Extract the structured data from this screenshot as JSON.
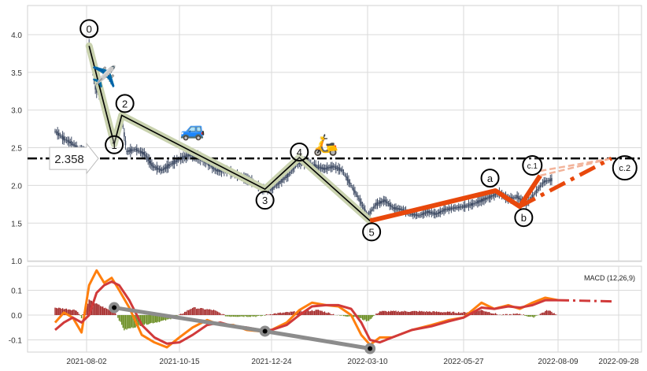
{
  "chart_data": [
    {
      "type": "candlestick",
      "ylim": [
        1.0,
        4.4
      ],
      "yticks": [
        "1.0",
        "1.5",
        "2.0",
        "2.5",
        "3.0",
        "3.5",
        "4.0"
      ],
      "grid": true,
      "close": [
        [
          "2021-07-08",
          2.72
        ],
        [
          "2021-07-15",
          2.62
        ],
        [
          "2021-07-22",
          2.55
        ],
        [
          "2021-07-29",
          2.45
        ],
        [
          "2021-08-03",
          2.4
        ],
        [
          "2021-08-04",
          3.85
        ],
        [
          "2021-08-09",
          3.3
        ],
        [
          "2021-08-16",
          3.1
        ],
        [
          "2021-08-20",
          2.8
        ],
        [
          "2021-08-24",
          2.6
        ],
        [
          "2021-08-30",
          2.9
        ],
        [
          "2021-09-03",
          2.45
        ],
        [
          "2021-09-10",
          2.48
        ],
        [
          "2021-09-17",
          2.42
        ],
        [
          "2021-09-24",
          2.25
        ],
        [
          "2021-10-01",
          2.2
        ],
        [
          "2021-10-08",
          2.28
        ],
        [
          "2021-10-15",
          2.35
        ],
        [
          "2021-10-22",
          2.4
        ],
        [
          "2021-10-29",
          2.38
        ],
        [
          "2021-11-05",
          2.3
        ],
        [
          "2021-11-12",
          2.2
        ],
        [
          "2021-11-19",
          2.2
        ],
        [
          "2021-11-26",
          2.15
        ],
        [
          "2021-12-03",
          2.1
        ],
        [
          "2021-12-10",
          2.05
        ],
        [
          "2021-12-17",
          1.95
        ],
        [
          "2021-12-24",
          1.95
        ],
        [
          "2021-12-31",
          2.05
        ],
        [
          "2022-01-07",
          2.15
        ],
        [
          "2022-01-14",
          2.3
        ],
        [
          "2022-01-21",
          2.3
        ],
        [
          "2022-01-28",
          2.25
        ],
        [
          "2022-02-04",
          2.22
        ],
        [
          "2022-02-11",
          2.25
        ],
        [
          "2022-02-18",
          2.2
        ],
        [
          "2022-02-25",
          2.0
        ],
        [
          "2022-03-04",
          1.8
        ],
        [
          "2022-03-10",
          1.6
        ],
        [
          "2022-03-17",
          1.75
        ],
        [
          "2022-03-24",
          1.8
        ],
        [
          "2022-03-31",
          1.7
        ],
        [
          "2022-04-07",
          1.68
        ],
        [
          "2022-04-14",
          1.62
        ],
        [
          "2022-04-21",
          1.6
        ],
        [
          "2022-04-28",
          1.65
        ],
        [
          "2022-05-05",
          1.62
        ],
        [
          "2022-05-12",
          1.68
        ],
        [
          "2022-05-19",
          1.7
        ],
        [
          "2022-05-27",
          1.72
        ],
        [
          "2022-06-03",
          1.75
        ],
        [
          "2022-06-10",
          1.8
        ],
        [
          "2022-06-17",
          1.85
        ],
        [
          "2022-06-24",
          1.9
        ],
        [
          "2022-07-01",
          1.82
        ],
        [
          "2022-07-08",
          1.85
        ],
        [
          "2022-07-15",
          1.75
        ],
        [
          "2022-07-22",
          1.9
        ],
        [
          "2022-07-29",
          2.05
        ],
        [
          "2022-08-05",
          2.08
        ]
      ],
      "candle_color": "#3d4a63",
      "level_line": {
        "value": 2.358,
        "label": "2.358",
        "color": "#000000"
      },
      "wave_impulse": {
        "points": [
          {
            "label": "0",
            "date": "2021-08-04",
            "value": 3.85
          },
          {
            "label": "1",
            "date": "2021-08-24",
            "value": 2.55
          },
          {
            "label": "2",
            "date": "2021-08-30",
            "value": 2.93
          },
          {
            "label": "3",
            "date": "2021-12-19",
            "value": 1.95
          },
          {
            "label": "4",
            "date": "2022-01-15",
            "value": 2.37
          },
          {
            "label": "5",
            "date": "2022-03-12",
            "value": 1.53
          }
        ],
        "color": "#000000",
        "highlight_color": "#c9d2ae"
      },
      "wave_correction": {
        "points": [
          {
            "label": "5",
            "date": "2022-03-12",
            "value": 1.53
          },
          {
            "label": "a",
            "date": "2022-06-21",
            "value": 1.93
          },
          {
            "label": "b",
            "date": "2022-07-10",
            "value": 1.72
          },
          {
            "label": "c.1",
            "date": "2022-07-26",
            "value": 2.13
          }
        ],
        "projection": {
          "label": "c.2",
          "date": "2022-09-22",
          "value": 2.358
        },
        "color": "#e8480c",
        "dash_color": "#f2b39a"
      },
      "emoji_icons": [
        {
          "name": "airplane-icon",
          "glyph": "✈️",
          "date": "2021-08-16",
          "value": 3.35
        },
        {
          "name": "car-icon",
          "glyph": "🚙",
          "date": "2021-10-25",
          "value": 2.65
        },
        {
          "name": "scooter-icon",
          "glyph": "🛵",
          "date": "2022-02-05",
          "value": 2.45
        }
      ]
    },
    {
      "type": "line",
      "title": "MACD (12,26,9)",
      "ylim": [
        -0.155,
        0.19
      ],
      "yticks": [
        "-0.1",
        "0.0",
        "0.1"
      ],
      "xticks": [
        "2021-08-02",
        "2021-10-15",
        "2021-12-24",
        "2022-03-10",
        "2022-05-27",
        "2022-08-09",
        "2022-09-28"
      ],
      "series": [
        {
          "color": "#ff7f0e",
          "values": [
            [
              "2021-07-08",
              -0.03
            ],
            [
              "2021-07-15",
              0.01
            ],
            [
              "2021-07-22",
              -0.01
            ],
            [
              "2021-07-29",
              -0.07
            ],
            [
              "2021-08-04",
              0.12
            ],
            [
              "2021-08-10",
              0.18
            ],
            [
              "2021-08-16",
              0.13
            ],
            [
              "2021-08-22",
              0.15
            ],
            [
              "2021-08-28",
              0.1
            ],
            [
              "2021-09-05",
              0.03
            ],
            [
              "2021-09-15",
              -0.08
            ],
            [
              "2021-09-25",
              -0.11
            ],
            [
              "2021-10-05",
              -0.13
            ],
            [
              "2021-10-15",
              -0.09
            ],
            [
              "2021-10-25",
              -0.05
            ],
            [
              "2021-11-05",
              -0.02
            ],
            [
              "2021-11-15",
              -0.04
            ],
            [
              "2021-11-25",
              -0.04
            ],
            [
              "2021-12-05",
              -0.06
            ],
            [
              "2021-12-15",
              -0.065
            ],
            [
              "2021-12-24",
              -0.06
            ],
            [
              "2022-01-05",
              -0.03
            ],
            [
              "2022-01-15",
              0.02
            ],
            [
              "2022-01-25",
              0.05
            ],
            [
              "2022-02-05",
              0.04
            ],
            [
              "2022-02-15",
              0.035
            ],
            [
              "2022-02-25",
              0.0
            ],
            [
              "2022-03-05",
              -0.08
            ],
            [
              "2022-03-12",
              -0.12
            ],
            [
              "2022-03-20",
              -0.09
            ],
            [
              "2022-03-30",
              -0.09
            ],
            [
              "2022-04-15",
              -0.06
            ],
            [
              "2022-05-01",
              -0.04
            ],
            [
              "2022-05-15",
              -0.02
            ],
            [
              "2022-05-27",
              -0.01
            ],
            [
              "2022-06-10",
              0.05
            ],
            [
              "2022-06-20",
              0.025
            ],
            [
              "2022-07-01",
              0.04
            ],
            [
              "2022-07-10",
              0.025
            ],
            [
              "2022-07-20",
              0.05
            ],
            [
              "2022-07-30",
              0.07
            ],
            [
              "2022-08-09",
              0.06
            ]
          ]
        },
        {
          "color": "#d13a3a",
          "values": [
            [
              "2021-07-08",
              -0.06
            ],
            [
              "2021-07-15",
              -0.03
            ],
            [
              "2021-07-22",
              -0.01
            ],
            [
              "2021-07-29",
              -0.03
            ],
            [
              "2021-08-04",
              0.0
            ],
            [
              "2021-08-10",
              0.09
            ],
            [
              "2021-08-16",
              0.12
            ],
            [
              "2021-08-22",
              0.135
            ],
            [
              "2021-08-28",
              0.12
            ],
            [
              "2021-09-05",
              0.06
            ],
            [
              "2021-09-15",
              -0.04
            ],
            [
              "2021-09-25",
              -0.09
            ],
            [
              "2021-10-05",
              -0.115
            ],
            [
              "2021-10-15",
              -0.11
            ],
            [
              "2021-10-25",
              -0.08
            ],
            [
              "2021-11-05",
              -0.04
            ],
            [
              "2021-11-15",
              -0.03
            ],
            [
              "2021-11-25",
              -0.045
            ],
            [
              "2021-12-05",
              -0.05
            ],
            [
              "2021-12-15",
              -0.06
            ],
            [
              "2021-12-24",
              -0.06
            ],
            [
              "2022-01-05",
              -0.04
            ],
            [
              "2022-01-15",
              0.0
            ],
            [
              "2022-01-25",
              0.035
            ],
            [
              "2022-02-05",
              0.04
            ],
            [
              "2022-02-15",
              0.04
            ],
            [
              "2022-02-25",
              0.025
            ],
            [
              "2022-03-05",
              -0.03
            ],
            [
              "2022-03-12",
              -0.1
            ],
            [
              "2022-03-20",
              -0.11
            ],
            [
              "2022-03-30",
              -0.09
            ],
            [
              "2022-04-15",
              -0.06
            ],
            [
              "2022-05-01",
              -0.045
            ],
            [
              "2022-05-15",
              -0.025
            ],
            [
              "2022-05-27",
              -0.01
            ],
            [
              "2022-06-10",
              0.03
            ],
            [
              "2022-06-20",
              0.025
            ],
            [
              "2022-07-01",
              0.035
            ],
            [
              "2022-07-10",
              0.03
            ],
            [
              "2022-07-20",
              0.04
            ],
            [
              "2022-07-30",
              0.06
            ],
            [
              "2022-08-09",
              0.06
            ]
          ]
        }
      ],
      "signal_projection": {
        "color": "#d13a3a",
        "values": [
          [
            "2022-08-09",
            0.06
          ],
          [
            "2022-09-25",
            0.055
          ]
        ]
      },
      "histogram": {
        "pos_color": "#a52a2a",
        "neg_color": "#6b8e23",
        "values": [
          [
            "2021-07-08",
            0.03
          ],
          [
            "2021-07-25",
            0.02
          ],
          [
            "2021-07-29",
            -0.01
          ],
          [
            "2021-08-04",
            0.06
          ],
          [
            "2021-08-16",
            0.03
          ],
          [
            "2021-08-25",
            0.01
          ],
          [
            "2021-09-01",
            -0.06
          ],
          [
            "2021-09-15",
            -0.04
          ],
          [
            "2021-10-05",
            -0.02
          ],
          [
            "2021-10-15",
            0.0
          ],
          [
            "2021-10-25",
            0.03
          ],
          [
            "2021-11-10",
            0.02
          ],
          [
            "2021-11-20",
            -0.005
          ],
          [
            "2021-12-15",
            -0.005
          ],
          [
            "2021-12-24",
            0.005
          ],
          [
            "2022-01-15",
            0.015
          ],
          [
            "2022-01-30",
            0.02
          ],
          [
            "2022-02-15",
            -0.002
          ],
          [
            "2022-02-28",
            -0.005
          ],
          [
            "2022-03-10",
            -0.025
          ],
          [
            "2022-03-16",
            0.0
          ],
          [
            "2022-03-20",
            0.015
          ],
          [
            "2022-04-20",
            0.015
          ],
          [
            "2022-05-27",
            0.01
          ],
          [
            "2022-06-10",
            0.02
          ],
          [
            "2022-06-25",
            0.0
          ],
          [
            "2022-07-10",
            0.005
          ],
          [
            "2022-07-20",
            -0.01
          ],
          [
            "2022-08-01",
            0.02
          ],
          [
            "2022-08-09",
            0.0
          ]
        ]
      },
      "divergence_line": {
        "color": "#8c8c8c",
        "points": [
          [
            "2021-08-24",
            0.03
          ],
          [
            "2021-12-19",
            -0.065
          ],
          [
            "2022-03-12",
            -0.135
          ]
        ]
      }
    }
  ]
}
